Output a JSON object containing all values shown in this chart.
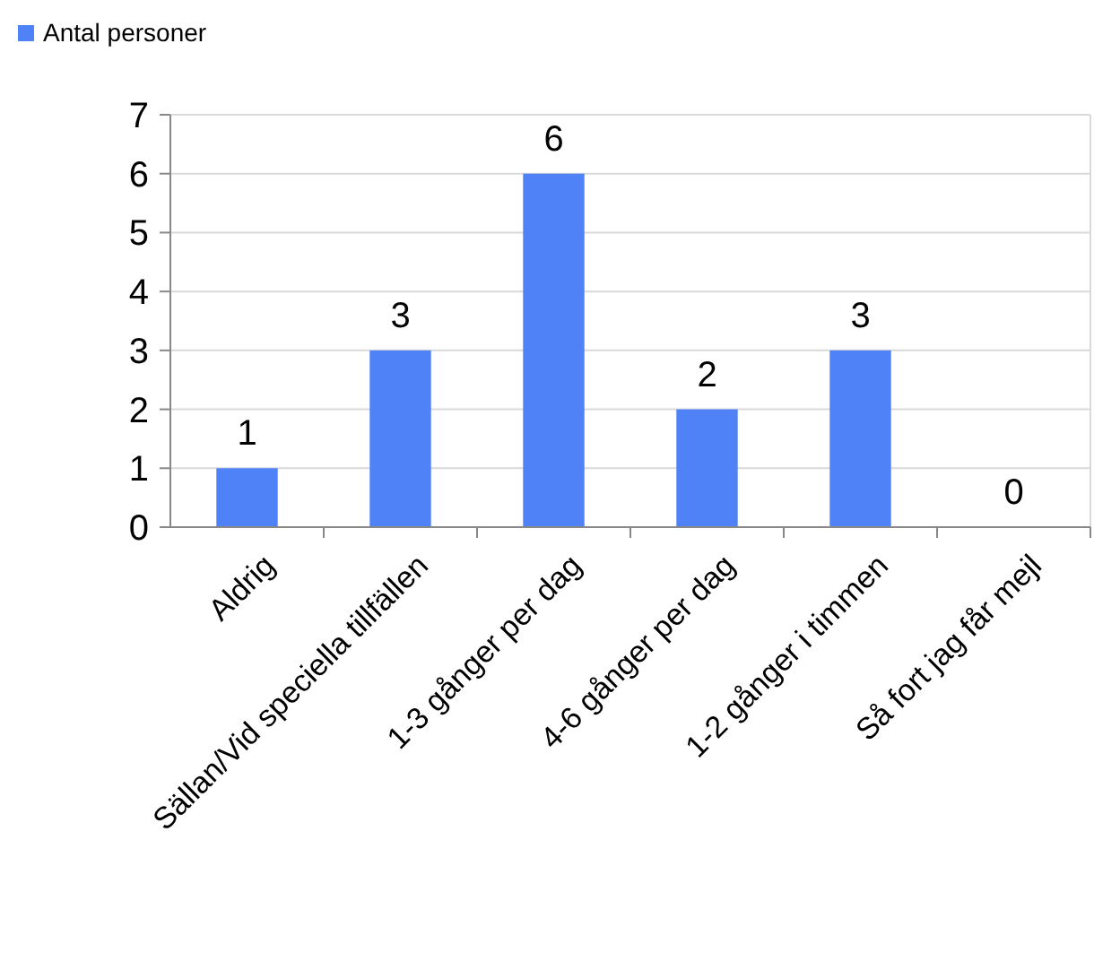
{
  "chart_data": {
    "type": "bar",
    "categories": [
      "Aldrig",
      "Sällan/Vid speciella tillfällen",
      "1-3 gånger per dag",
      "4-6 gånger per dag",
      "1-2 gånger i timmen",
      "Så fort jag får mejl"
    ],
    "series": [
      {
        "name": "Antal personer",
        "color": "#4f81f7",
        "values": [
          1,
          3,
          6,
          2,
          3,
          0
        ]
      }
    ],
    "ylim": [
      0,
      7
    ],
    "yticks": [
      0,
      1,
      2,
      3,
      4,
      5,
      6,
      7
    ],
    "grid": "y",
    "legend": "top left",
    "data_labels": true
  }
}
